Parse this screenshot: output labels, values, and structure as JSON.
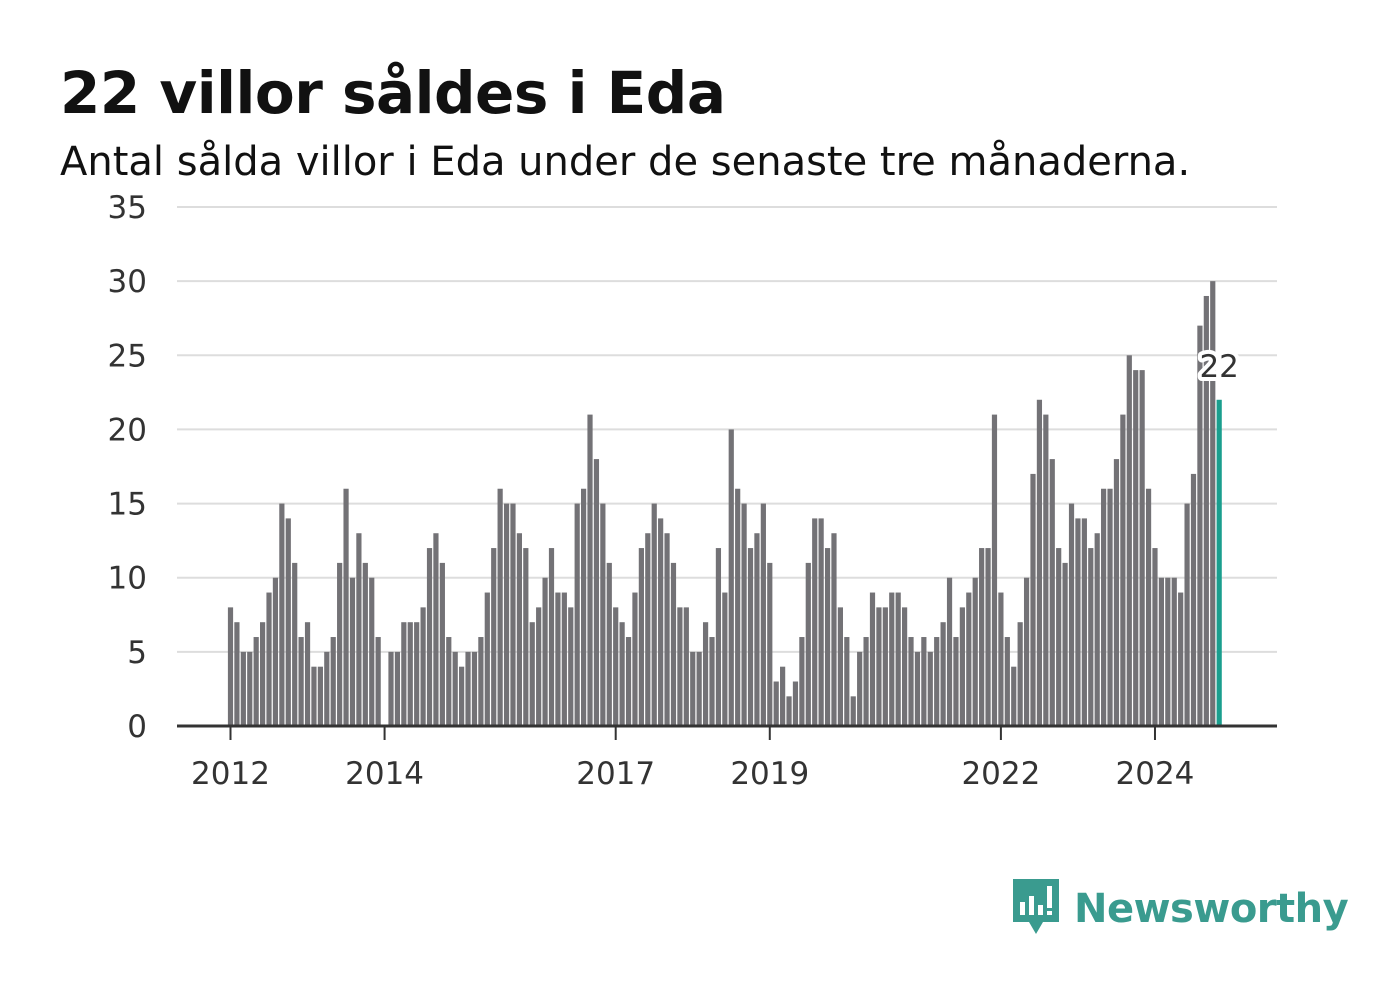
{
  "title": "22 villor såldes i Eda",
  "subtitle": "Antal sålda villor i Eda under de senaste tre månaderna.",
  "brand": {
    "name": "Newsworthy",
    "color": "#3a9b8f",
    "icon": "newsworthy-logo-icon"
  },
  "colors": {
    "bar": "#737276",
    "highlight": "#1a9e8e",
    "grid": "#dddddd",
    "axis": "#333333"
  },
  "chart_data": {
    "type": "bar",
    "title": "22 villor såldes i Eda",
    "subtitle": "Antal sålda villor i Eda under de senaste tre månaderna.",
    "x_unit": "month",
    "x_start": "2012-01",
    "values": [
      8,
      7,
      5,
      5,
      6,
      7,
      9,
      10,
      15,
      14,
      11,
      6,
      7,
      4,
      4,
      5,
      6,
      11,
      16,
      10,
      13,
      11,
      10,
      6,
      null,
      5,
      5,
      7,
      7,
      7,
      8,
      12,
      13,
      11,
      6,
      5,
      4,
      5,
      5,
      6,
      9,
      12,
      16,
      15,
      15,
      13,
      12,
      7,
      8,
      10,
      12,
      9,
      9,
      8,
      15,
      16,
      21,
      18,
      15,
      11,
      8,
      7,
      6,
      9,
      12,
      13,
      15,
      14,
      13,
      11,
      8,
      8,
      5,
      5,
      7,
      6,
      12,
      9,
      20,
      16,
      15,
      12,
      13,
      15,
      11,
      3,
      4,
      2,
      3,
      6,
      11,
      14,
      14,
      12,
      13,
      8,
      6,
      2,
      5,
      6,
      9,
      8,
      8,
      9,
      9,
      8,
      6,
      5,
      6,
      5,
      6,
      7,
      10,
      6,
      8,
      9,
      10,
      12,
      12,
      21,
      9,
      6,
      4,
      7,
      10,
      17,
      22,
      21,
      18,
      12,
      11,
      15,
      14,
      14,
      12,
      13,
      16,
      16,
      18,
      21,
      25,
      24,
      24,
      16,
      12,
      10,
      10,
      10,
      9,
      15,
      17,
      27,
      29,
      30,
      22
    ],
    "highlight_last": true,
    "highlight_label": "22",
    "ylim": [
      0,
      35
    ],
    "yticks": [
      0,
      5,
      10,
      15,
      20,
      25,
      30,
      35
    ],
    "xticks": [
      {
        "label": "2012",
        "date": "2012-01"
      },
      {
        "label": "2014",
        "date": "2014-01"
      },
      {
        "label": "2017",
        "date": "2017-01"
      },
      {
        "label": "2019",
        "date": "2019-01"
      },
      {
        "label": "2022",
        "date": "2022-01"
      },
      {
        "label": "2024",
        "date": "2024-01"
      }
    ],
    "grid": true,
    "legend": false,
    "xlabel": "",
    "ylabel": ""
  }
}
